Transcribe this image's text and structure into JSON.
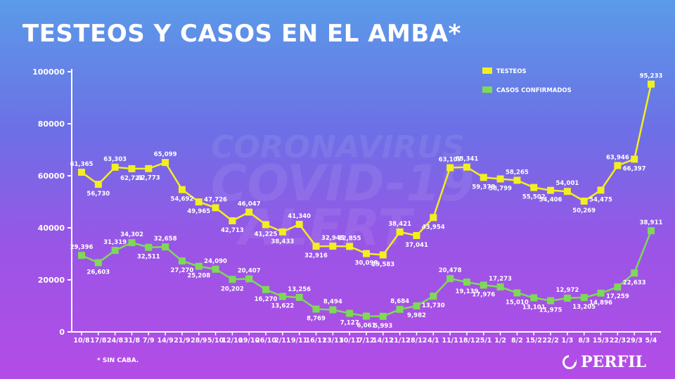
{
  "title": "TESTEOS Y CASOS EN EL AMBA*",
  "footnote": "* SIN CABA.",
  "logo_text": "PERFIL",
  "watermark": {
    "line1": "CORONAVIRUS",
    "line2": "COVID-19",
    "line3": "ALERT"
  },
  "colors": {
    "testeos": "#f2ef1f",
    "casos": "#7ed957",
    "axis": "#ffffff"
  },
  "chart_data": {
    "type": "line",
    "title": "TESTEOS Y CASOS EN EL AMBA*",
    "ylim": [
      0,
      100000
    ],
    "yticks": [
      0,
      20000,
      40000,
      60000,
      80000,
      100000
    ],
    "legend_position": "top-right",
    "categories": [
      "10/8",
      "17/8",
      "24/8",
      "31/8",
      "7/9",
      "14/9",
      "21/9",
      "28/9",
      "5/10",
      "12/10",
      "19/10",
      "26/10",
      "2/11",
      "9/11",
      "16/11",
      "23/11",
      "30/11",
      "7/12",
      "14/12",
      "21/12",
      "28/12",
      "4/1",
      "11/1",
      "18/1",
      "25/1",
      "1/2",
      "8/2",
      "15/2",
      "22/2",
      "1/3",
      "8/3",
      "15/3",
      "22/3",
      "29/3",
      "5/4"
    ],
    "series": [
      {
        "name": "TESTEOS",
        "values": [
          61365,
          56730,
          63303,
          62721,
          62773,
          65099,
          54692,
          49965,
          47726,
          42713,
          46047,
          41225,
          38433,
          41340,
          32916,
          32945,
          32855,
          30098,
          29583,
          38421,
          37041,
          43954,
          63107,
          63341,
          59378,
          58799,
          58265,
          55502,
          54406,
          54001,
          50269,
          54475,
          63946,
          66397,
          95233
        ],
        "labels": [
          "61,365",
          "56,730",
          "63,303",
          "62,721",
          "62,773",
          "65,099",
          "54,692",
          "49,965",
          "47,726",
          "42,713",
          "46,047",
          "41,225",
          "38,433",
          "41,340",
          "32,916",
          "32,945",
          "32,855",
          "30,098",
          "29,583",
          "38,421",
          "37,041",
          "43,954",
          "63,107",
          "63,341",
          "59,378",
          "58,799",
          "58,265",
          "55,502",
          "54,406",
          "54,001",
          "50,269",
          "54,475",
          "63,946",
          "66,397",
          "95,233"
        ]
      },
      {
        "name": "CASOS CONFIRMADOS",
        "values": [
          29396,
          26603,
          31319,
          34302,
          32511,
          32658,
          27270,
          25208,
          24090,
          20202,
          20407,
          16270,
          13622,
          13256,
          8769,
          8494,
          7127,
          6061,
          5993,
          8684,
          9982,
          13730,
          20478,
          19139,
          17976,
          17273,
          15010,
          13101,
          11975,
          12972,
          13205,
          14896,
          17259,
          22633,
          38911
        ],
        "labels": [
          "29,396",
          "26,603",
          "31,319",
          "34,302",
          "32,511",
          "32,658",
          "27,270",
          "25,208",
          "24,090",
          "20,202",
          "20,407",
          "16,270",
          "13,622",
          "13,256",
          "8,769",
          "8,494",
          "7,127",
          "6,061",
          "5,993",
          "8,684",
          "9,982",
          "13,730",
          "20,478",
          "19,139",
          "17,976",
          "17,273",
          "15,010",
          "13,101",
          "11,975",
          "12,972",
          "13,205",
          "14,896",
          "17,259",
          "22,633",
          "38,911"
        ]
      }
    ]
  }
}
